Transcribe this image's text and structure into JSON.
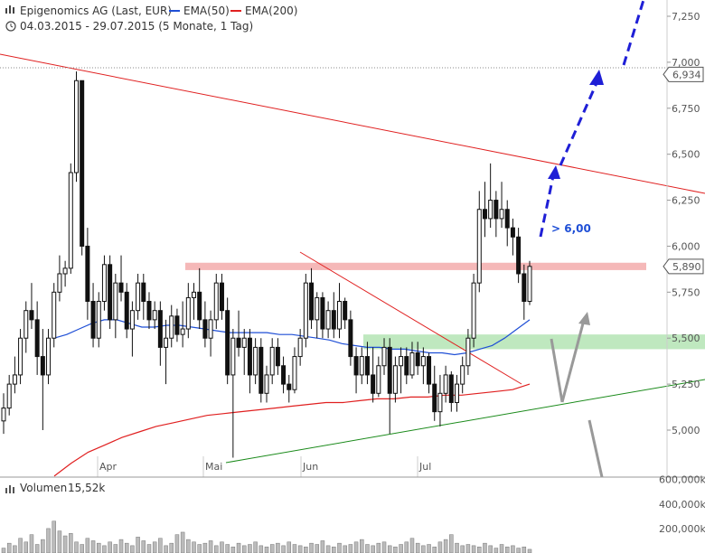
{
  "chart_data": {
    "type": "candlestick",
    "title": "Epigenomics AG (Last, EUR)",
    "subtitle": "04.03.2015 - 29.07.2015 (5 Monate, 1 Tag)",
    "legend": [
      {
        "name": "EMA(50)",
        "color": "#1f4fd6"
      },
      {
        "name": "EMA(200)",
        "color": "#e02020"
      }
    ],
    "ylim": [
      4.8,
      7.4
    ],
    "y_ticks": [
      "7,250",
      "7,000",
      "6,750",
      "6,500",
      "6,250",
      "6,000",
      "5,750",
      "5,500",
      "5,250",
      "5,000"
    ],
    "y_tick_values": [
      7.25,
      7.0,
      6.75,
      6.5,
      6.25,
      6.0,
      5.75,
      5.5,
      5.25,
      5.0
    ],
    "x_ticks": [
      "Apr",
      "Mai",
      "Jun",
      "Jul"
    ],
    "x_tick_dates": [
      "2015-04-01",
      "2015-05-01",
      "2015-06-01",
      "2015-07-01"
    ],
    "price_flags": [
      {
        "label": "6,934",
        "value": 6.934
      },
      {
        "label": "5,890",
        "value": 5.89
      }
    ],
    "annotation": {
      "text": "> 6,00",
      "color": "#1f4fd6"
    },
    "zones": [
      {
        "name": "resistance",
        "from": 5.87,
        "to": 5.91,
        "color": "#f5b8b8"
      },
      {
        "name": "support",
        "from": 5.44,
        "to": 5.52,
        "color": "#bfe8bf"
      }
    ],
    "volume": {
      "label": "Volumen",
      "value": "15,52k",
      "ticks": [
        "600,000k",
        "400,000k",
        "200,000k"
      ],
      "tick_values": [
        600,
        400,
        200
      ],
      "unit": "k"
    },
    "candles": [
      [
        5.05,
        5.2,
        4.98,
        5.12
      ],
      [
        5.12,
        5.3,
        5.08,
        5.25
      ],
      [
        5.25,
        5.4,
        5.2,
        5.3
      ],
      [
        5.3,
        5.55,
        5.25,
        5.5
      ],
      [
        5.5,
        5.7,
        5.42,
        5.65
      ],
      [
        5.65,
        5.8,
        5.55,
        5.6
      ],
      [
        5.6,
        5.7,
        5.3,
        5.4
      ],
      [
        5.4,
        5.55,
        5.0,
        5.3
      ],
      [
        5.3,
        5.55,
        5.25,
        5.5
      ],
      [
        5.5,
        5.8,
        5.45,
        5.75
      ],
      [
        5.75,
        5.95,
        5.7,
        5.85
      ],
      [
        5.85,
        5.92,
        5.78,
        5.88
      ],
      [
        5.88,
        6.45,
        5.85,
        6.4
      ],
      [
        6.4,
        6.95,
        6.35,
        6.9
      ],
      [
        6.9,
        6.9,
        5.95,
        6.0
      ],
      [
        6.0,
        6.1,
        5.6,
        5.7
      ],
      [
        5.7,
        5.8,
        5.45,
        5.5
      ],
      [
        5.5,
        5.75,
        5.45,
        5.7
      ],
      [
        5.7,
        5.95,
        5.65,
        5.9
      ],
      [
        5.9,
        5.95,
        5.55,
        5.6
      ],
      [
        5.6,
        5.85,
        5.5,
        5.8
      ],
      [
        5.8,
        5.95,
        5.7,
        5.75
      ],
      [
        5.75,
        5.8,
        5.5,
        5.55
      ],
      [
        5.55,
        5.7,
        5.4,
        5.65
      ],
      [
        5.65,
        5.85,
        5.6,
        5.8
      ],
      [
        5.8,
        5.85,
        5.6,
        5.7
      ],
      [
        5.7,
        5.75,
        5.55,
        5.6
      ],
      [
        5.6,
        5.7,
        5.55,
        5.65
      ],
      [
        5.65,
        5.7,
        5.35,
        5.45
      ],
      [
        5.45,
        5.6,
        5.25,
        5.5
      ],
      [
        5.5,
        5.68,
        5.45,
        5.62
      ],
      [
        5.62,
        5.66,
        5.48,
        5.52
      ],
      [
        5.52,
        5.7,
        5.45,
        5.55
      ],
      [
        5.55,
        5.8,
        5.5,
        5.72
      ],
      [
        5.72,
        5.8,
        5.6,
        5.75
      ],
      [
        5.75,
        5.88,
        5.55,
        5.6
      ],
      [
        5.6,
        5.7,
        5.45,
        5.5
      ],
      [
        5.5,
        5.65,
        5.4,
        5.6
      ],
      [
        5.6,
        5.85,
        5.55,
        5.8
      ],
      [
        5.8,
        5.85,
        5.6,
        5.65
      ],
      [
        5.65,
        5.72,
        5.25,
        5.3
      ],
      [
        5.3,
        5.55,
        4.85,
        5.5
      ],
      [
        5.5,
        5.65,
        5.4,
        5.45
      ],
      [
        5.45,
        5.55,
        5.3,
        5.5
      ],
      [
        5.5,
        5.55,
        5.2,
        5.3
      ],
      [
        5.3,
        5.5,
        5.25,
        5.45
      ],
      [
        5.45,
        5.5,
        5.15,
        5.2
      ],
      [
        5.2,
        5.35,
        5.15,
        5.3
      ],
      [
        5.3,
        5.5,
        5.25,
        5.45
      ],
      [
        5.45,
        5.5,
        5.3,
        5.35
      ],
      [
        5.35,
        5.4,
        5.2,
        5.25
      ],
      [
        5.25,
        5.3,
        5.15,
        5.22
      ],
      [
        5.22,
        5.45,
        5.2,
        5.4
      ],
      [
        5.4,
        5.55,
        5.35,
        5.5
      ],
      [
        5.5,
        5.85,
        5.45,
        5.8
      ],
      [
        5.8,
        5.88,
        5.55,
        5.6
      ],
      [
        5.6,
        5.75,
        5.5,
        5.72
      ],
      [
        5.72,
        5.75,
        5.5,
        5.55
      ],
      [
        5.55,
        5.7,
        5.5,
        5.65
      ],
      [
        5.65,
        5.75,
        5.5,
        5.55
      ],
      [
        5.55,
        5.8,
        5.5,
        5.7
      ],
      [
        5.7,
        5.72,
        5.55,
        5.6
      ],
      [
        5.6,
        5.65,
        5.35,
        5.4
      ],
      [
        5.4,
        5.45,
        5.2,
        5.3
      ],
      [
        5.3,
        5.45,
        5.25,
        5.4
      ],
      [
        5.4,
        5.48,
        5.25,
        5.3
      ],
      [
        5.3,
        5.45,
        5.15,
        5.2
      ],
      [
        5.2,
        5.4,
        5.18,
        5.35
      ],
      [
        5.35,
        5.5,
        5.3,
        5.45
      ],
      [
        5.45,
        5.5,
        4.98,
        5.2
      ],
      [
        5.2,
        5.4,
        5.15,
        5.35
      ],
      [
        5.35,
        5.45,
        5.2,
        5.4
      ],
      [
        5.4,
        5.45,
        5.25,
        5.3
      ],
      [
        5.3,
        5.48,
        5.28,
        5.42
      ],
      [
        5.42,
        5.48,
        5.3,
        5.35
      ],
      [
        5.35,
        5.45,
        5.25,
        5.4
      ],
      [
        5.4,
        5.42,
        5.2,
        5.25
      ],
      [
        5.25,
        5.35,
        5.05,
        5.1
      ],
      [
        5.1,
        5.3,
        5.02,
        5.2
      ],
      [
        5.2,
        5.35,
        5.15,
        5.3
      ],
      [
        5.3,
        5.32,
        5.1,
        5.15
      ],
      [
        5.15,
        5.3,
        5.1,
        5.25
      ],
      [
        5.25,
        5.4,
        5.2,
        5.35
      ],
      [
        5.35,
        5.55,
        5.3,
        5.5
      ],
      [
        5.5,
        5.85,
        5.45,
        5.8
      ],
      [
        5.8,
        6.3,
        5.75,
        6.2
      ],
      [
        6.2,
        6.35,
        6.05,
        6.15
      ],
      [
        6.15,
        6.45,
        6.1,
        6.25
      ],
      [
        6.25,
        6.3,
        6.05,
        6.15
      ],
      [
        6.15,
        6.35,
        6.1,
        6.2
      ],
      [
        6.2,
        6.25,
        6.0,
        6.1
      ],
      [
        6.1,
        6.15,
        5.95,
        6.05
      ],
      [
        6.05,
        6.1,
        5.8,
        5.85
      ],
      [
        5.85,
        5.9,
        5.6,
        5.7
      ],
      [
        5.7,
        5.92,
        5.68,
        5.89
      ]
    ],
    "ema50": [
      5.5,
      5.52,
      5.55,
      5.58,
      5.6,
      5.6,
      5.58,
      5.56,
      5.56,
      5.57,
      5.57,
      5.56,
      5.55,
      5.54,
      5.53,
      5.53,
      5.53,
      5.53,
      5.52,
      5.52,
      5.51,
      5.5,
      5.49,
      5.47,
      5.46,
      5.45,
      5.45,
      5.44,
      5.44,
      5.43,
      5.42,
      5.42,
      5.41,
      5.42,
      5.44,
      5.46,
      5.5,
      5.55,
      5.6
    ],
    "ema200": [
      4.75,
      4.82,
      4.88,
      4.92,
      4.96,
      4.99,
      5.02,
      5.04,
      5.06,
      5.08,
      5.09,
      5.1,
      5.11,
      5.12,
      5.13,
      5.14,
      5.15,
      5.15,
      5.16,
      5.17,
      5.17,
      5.18,
      5.18,
      5.19,
      5.19,
      5.2,
      5.21,
      5.22,
      5.25
    ]
  }
}
